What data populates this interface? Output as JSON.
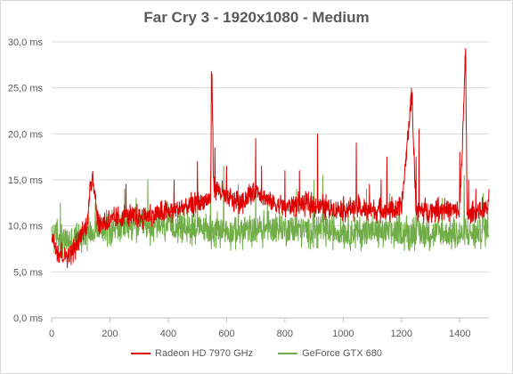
{
  "chart_data": {
    "type": "line",
    "title": "Far Cry 3 - 1920x1080 - Medium",
    "xlabel": "",
    "ylabel": "",
    "xlim": [
      0,
      1500
    ],
    "ylim": [
      0,
      30
    ],
    "x_ticks": [
      "0",
      "200",
      "400",
      "600",
      "800",
      "1000",
      "1200",
      "1400"
    ],
    "y_ticks": [
      "0,0 ms",
      "5,0 ms",
      "10,0 ms",
      "15,0 ms",
      "20,0 ms",
      "25,0 ms",
      "30,0 ms"
    ],
    "grid": "horizontal",
    "legend_position": "bottom",
    "series": [
      {
        "name": "Radeon HD 7970 GHz",
        "color": "#e00000",
        "x": [
          0,
          20,
          40,
          60,
          80,
          100,
          120,
          140,
          160,
          200,
          250,
          300,
          350,
          400,
          450,
          500,
          545,
          550,
          555,
          600,
          650,
          700,
          750,
          800,
          850,
          900,
          950,
          1000,
          1050,
          1100,
          1150,
          1200,
          1235,
          1250,
          1300,
          1350,
          1400,
          1420,
          1425,
          1430,
          1450,
          1500
        ],
        "y": [
          9.0,
          7.3,
          6.8,
          6.9,
          7.6,
          9.0,
          10.0,
          15.8,
          10.3,
          10.5,
          11.0,
          11.0,
          11.2,
          11.5,
          12.0,
          12.4,
          13.0,
          26.8,
          14.5,
          13.0,
          12.5,
          14.0,
          12.6,
          12.0,
          12.5,
          12.2,
          12.0,
          11.8,
          12.0,
          11.6,
          11.8,
          11.8,
          24.5,
          11.6,
          11.8,
          11.9,
          11.5,
          28.5,
          11.5,
          11.0,
          11.5,
          12.0
        ],
        "spikes": [
          [
            140,
            15.8
          ],
          [
            255,
            14.5
          ],
          [
            420,
            15.0
          ],
          [
            500,
            17.0
          ],
          [
            548,
            26.8
          ],
          [
            560,
            18.5
          ],
          [
            600,
            16.5
          ],
          [
            700,
            19.5
          ],
          [
            720,
            16.5
          ],
          [
            800,
            16.0
          ],
          [
            850,
            16.0
          ],
          [
            912,
            20.0
          ],
          [
            1045,
            19.0
          ],
          [
            1090,
            14.5
          ],
          [
            1130,
            15.0
          ],
          [
            1150,
            17.5
          ],
          [
            1237,
            24.5
          ],
          [
            1250,
            17.5
          ],
          [
            1260,
            20.5
          ],
          [
            1400,
            18.0
          ],
          [
            1418,
            28.5
          ],
          [
            1430,
            15.0
          ],
          [
            1455,
            14.0
          ],
          [
            1500,
            14.0
          ]
        ]
      },
      {
        "name": "GeForce GTX 680",
        "color": "#70ad47",
        "x": [
          0,
          20,
          40,
          60,
          80,
          100,
          150,
          200,
          250,
          300,
          350,
          400,
          450,
          500,
          550,
          600,
          650,
          700,
          750,
          800,
          850,
          900,
          950,
          1000,
          1050,
          1100,
          1150,
          1200,
          1250,
          1300,
          1350,
          1400,
          1420,
          1450,
          1500
        ],
        "y": [
          8.8,
          9.0,
          8.3,
          8.6,
          8.7,
          9.0,
          9.6,
          9.8,
          9.9,
          10.0,
          9.9,
          10.0,
          10.0,
          9.8,
          9.5,
          9.4,
          9.4,
          9.6,
          9.7,
          9.8,
          9.6,
          9.5,
          9.5,
          9.4,
          9.3,
          9.4,
          9.3,
          9.3,
          9.3,
          9.3,
          9.2,
          9.0,
          9.2,
          9.2,
          9.8
        ],
        "spikes": [
          [
            30,
            12.5
          ],
          [
            150,
            12.5
          ],
          [
            250,
            14.0
          ],
          [
            290,
            13.0
          ],
          [
            330,
            15.0
          ],
          [
            400,
            12.5
          ],
          [
            500,
            15.0
          ],
          [
            545,
            16.0
          ],
          [
            590,
            16.5
          ],
          [
            640,
            14.5
          ],
          [
            700,
            15.0
          ],
          [
            740,
            13.0
          ],
          [
            840,
            14.0
          ],
          [
            900,
            15.0
          ],
          [
            930,
            15.5
          ],
          [
            1000,
            13.0
          ],
          [
            1080,
            14.0
          ],
          [
            1160,
            13.5
          ],
          [
            1250,
            14.5
          ],
          [
            1340,
            13.0
          ],
          [
            1415,
            15.5
          ],
          [
            1480,
            13.5
          ]
        ]
      }
    ]
  }
}
